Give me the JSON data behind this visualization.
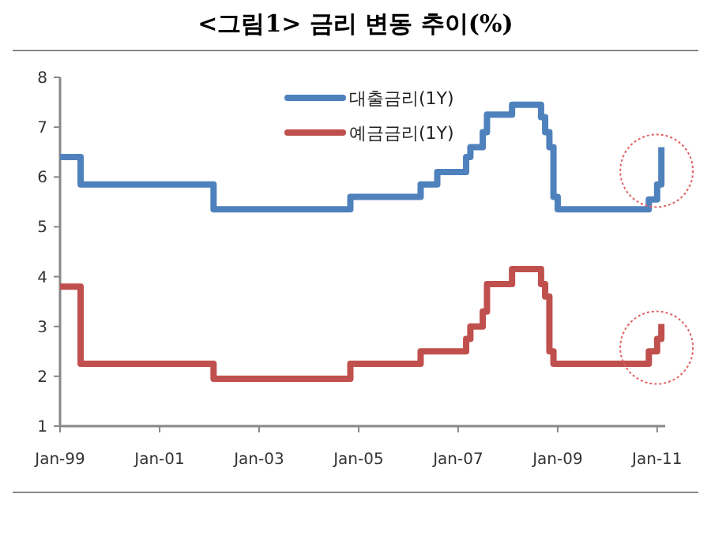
{
  "chart_data": {
    "type": "step",
    "title": "<그림1> 금리 변동 추이(%)",
    "xlim": [
      "1999-01",
      "2011-03"
    ],
    "xticks": [
      {
        "value": "1999-01",
        "label": "Jan-99"
      },
      {
        "value": "2001-01",
        "label": "Jan-01"
      },
      {
        "value": "2003-01",
        "label": "Jan-03"
      },
      {
        "value": "2005-01",
        "label": "Jan-05"
      },
      {
        "value": "2007-01",
        "label": "Jan-07"
      },
      {
        "value": "2009-01",
        "label": "Jan-09"
      },
      {
        "value": "2011-01",
        "label": "Jan-11"
      }
    ],
    "ylim": [
      1,
      8
    ],
    "yticks": [
      1,
      2,
      3,
      4,
      5,
      6,
      7,
      8
    ],
    "grid": false,
    "legend": "top right",
    "marker": "none",
    "line_style": "solid",
    "series": [
      {
        "name": "대출금리(1Y)",
        "color": "#4f81bd",
        "x": [
          "1999-01",
          "1999-06",
          "2002-02",
          "2004-11",
          "2006-04",
          "2006-08",
          "2007-03",
          "2007-04",
          "2007-07",
          "2007-08",
          "2008-02",
          "2008-09",
          "2008-10",
          "2008-11",
          "2008-12",
          "2009-01",
          "2010-11",
          "2011-01",
          "2011-02"
        ],
        "values": [
          6.4,
          5.85,
          5.35,
          5.6,
          5.85,
          6.1,
          6.4,
          6.6,
          6.9,
          7.25,
          7.45,
          7.2,
          6.9,
          6.6,
          5.6,
          5.35,
          5.55,
          5.85,
          6.6
        ]
      },
      {
        "name": "예금금리(1Y)",
        "color": "#c0504d",
        "x": [
          "1999-01",
          "1999-06",
          "2002-02",
          "2004-11",
          "2006-04",
          "2007-03",
          "2007-04",
          "2007-07",
          "2007-08",
          "2008-02",
          "2008-09",
          "2008-10",
          "2008-11",
          "2008-12",
          "2010-11",
          "2011-01",
          "2011-02"
        ],
        "values": [
          3.8,
          2.25,
          1.95,
          2.25,
          2.5,
          2.75,
          3.0,
          3.3,
          3.85,
          4.15,
          3.85,
          3.6,
          2.5,
          2.25,
          2.5,
          2.75,
          3.05
        ]
      }
    ]
  }
}
